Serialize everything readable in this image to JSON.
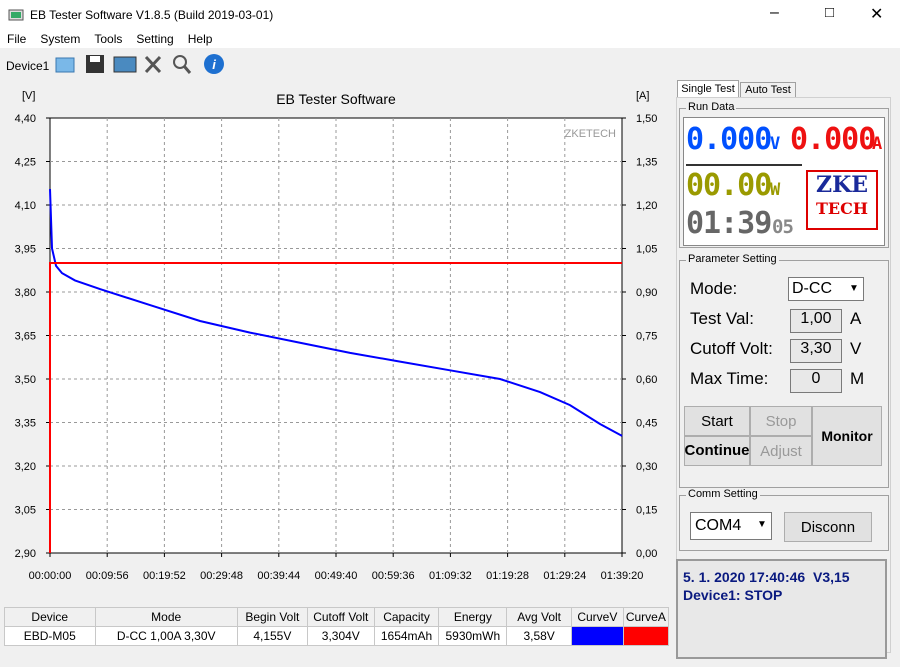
{
  "window": {
    "title": "EB Tester Software V1.8.5 (Build 2019-03-01)"
  },
  "menu": [
    "File",
    "System",
    "Tools",
    "Setting",
    "Help"
  ],
  "toolbar": {
    "device": "Device1"
  },
  "chart_data": {
    "type": "line",
    "title": "EB Tester Software",
    "y_label": "[V]",
    "y2_label": "[A]",
    "watermark": "ZKETECH",
    "xlim": [
      0,
      5960
    ],
    "xticks": [
      {
        "value": 0,
        "label": "00:00:00"
      },
      {
        "value": 596,
        "label": "00:09:56"
      },
      {
        "value": 1192,
        "label": "00:19:52"
      },
      {
        "value": 1788,
        "label": "00:29:48"
      },
      {
        "value": 2384,
        "label": "00:39:44"
      },
      {
        "value": 2980,
        "label": "00:49:40"
      },
      {
        "value": 3576,
        "label": "00:59:36"
      },
      {
        "value": 4172,
        "label": "01:09:32"
      },
      {
        "value": 4768,
        "label": "01:19:28"
      },
      {
        "value": 5364,
        "label": "01:29:24"
      },
      {
        "value": 5960,
        "label": "01:39:20"
      }
    ],
    "ylim": [
      2.9,
      4.4
    ],
    "yticks": [
      {
        "value": 2.9,
        "label": "2,90"
      },
      {
        "value": 3.05,
        "label": "3,05"
      },
      {
        "value": 3.2,
        "label": "3,20"
      },
      {
        "value": 3.35,
        "label": "3,35"
      },
      {
        "value": 3.5,
        "label": "3,50"
      },
      {
        "value": 3.65,
        "label": "3,65"
      },
      {
        "value": 3.8,
        "label": "3,80"
      },
      {
        "value": 3.95,
        "label": "3,95"
      },
      {
        "value": 4.1,
        "label": "4,10"
      },
      {
        "value": 4.25,
        "label": "4,25"
      },
      {
        "value": 4.4,
        "label": "4,40"
      }
    ],
    "y2lim": [
      0,
      1.5
    ],
    "y2ticks": [
      {
        "value": 0,
        "label": "0,00"
      },
      {
        "value": 0.15,
        "label": "0,15"
      },
      {
        "value": 0.3,
        "label": "0,30"
      },
      {
        "value": 0.45,
        "label": "0,45"
      },
      {
        "value": 0.6,
        "label": "0,60"
      },
      {
        "value": 0.75,
        "label": "0,75"
      },
      {
        "value": 0.9,
        "label": "0,90"
      },
      {
        "value": 1.05,
        "label": "1,05"
      },
      {
        "value": 1.2,
        "label": "1,20"
      },
      {
        "value": 1.35,
        "label": "1,35"
      },
      {
        "value": 1.5,
        "label": "1,50"
      }
    ],
    "grid": true,
    "series": [
      {
        "color": "#0000ff",
        "x": [
          0,
          21,
          63,
          125,
          260,
          521,
          1042,
          1563,
          2084,
          2605,
          3126,
          3647,
          4168,
          4689,
          5106,
          5418,
          5731,
          5960
        ],
        "values": [
          4.155,
          3.95,
          3.89,
          3.865,
          3.84,
          3.81,
          3.755,
          3.7,
          3.66,
          3.625,
          3.59,
          3.56,
          3.53,
          3.5,
          3.455,
          3.41,
          3.345,
          3.304
        ]
      },
      {
        "color": "#ff0000",
        "axis": "y2",
        "x": [
          0,
          0,
          5960
        ],
        "values": [
          0,
          1.0,
          1.0
        ]
      }
    ]
  },
  "tabs": [
    "Single Test",
    "Auto Test"
  ],
  "run_data": {
    "title": "Run Data",
    "voltage": "0.000",
    "voltage_unit": "V",
    "current": "0.000",
    "current_unit": "A",
    "power": "00.00",
    "power_unit": "W",
    "time": "01:39",
    "time_seconds": "05",
    "logo_top": "ZKE",
    "logo_bottom": "TECH"
  },
  "parameter_setting": {
    "title": "Parameter Setting",
    "fields": [
      {
        "label": "Mode:",
        "value": "D-CC"
      },
      {
        "label": "Test Val:",
        "value": "1,00",
        "unit": "A"
      },
      {
        "label": "Cutoff Volt:",
        "value": "3,30",
        "unit": "V"
      },
      {
        "label": "Max Time:",
        "value": "0",
        "unit": "M"
      }
    ],
    "buttons": [
      "Start",
      "Stop",
      "Continue",
      "Adjust",
      "Monitor"
    ]
  },
  "comm_setting": {
    "title": "Comm Setting",
    "port": "COM4",
    "button": "Disconn"
  },
  "status": {
    "line1": "5. 1. 2020 17:40:46  V3,15",
    "line2": "Device1: STOP"
  },
  "table": {
    "headers": [
      "Device",
      "Mode",
      "Begin Volt",
      "Cutoff Volt",
      "Capacity",
      "Energy",
      "Avg Volt",
      "CurveV",
      "CurveA"
    ],
    "rows": [
      [
        "EBD-M05",
        "D-CC 1,00A 3,30V",
        "4,155V",
        "3,304V",
        "1654mAh",
        "5930mWh",
        "3,58V"
      ]
    ]
  }
}
